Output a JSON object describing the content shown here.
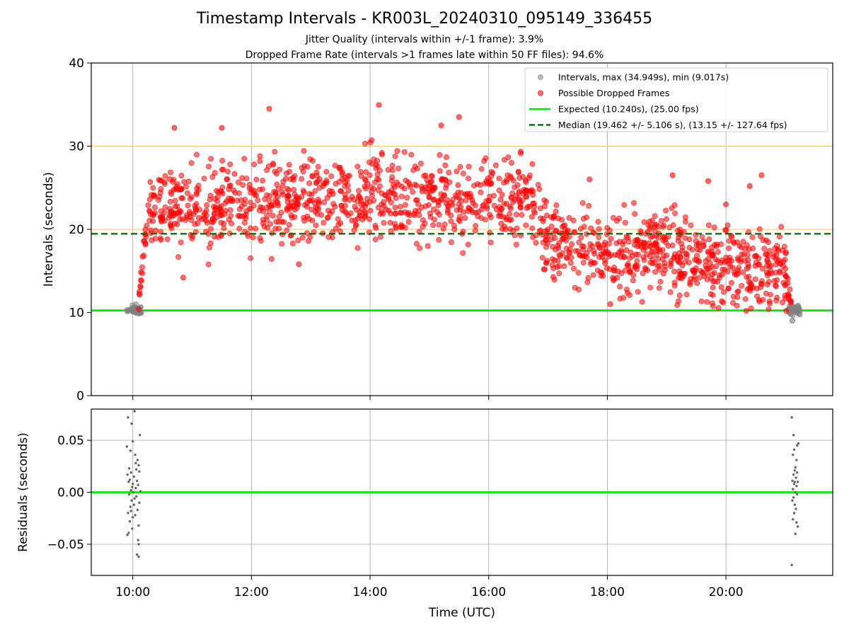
{
  "title": "Timestamp Intervals - KR003L_20240310_095149_336455",
  "subtitle_1": "Jitter Quality (intervals within +/-1 frame): 3.9%",
  "subtitle_2": "Dropped Frame Rate (intervals >1 frames late within 50 FF files): 94.6%",
  "colors": {
    "intervals": "#808080",
    "dropped": "#ff0000",
    "expected": "#00ee00",
    "median": "#007700",
    "limit": "#ffd060",
    "grid": "#b0b0b0"
  },
  "chart_data": [
    {
      "type": "scatter",
      "ylabel": "Intervals (seconds)",
      "ylim": [
        0,
        40
      ],
      "yticks": [
        0,
        10,
        20,
        30,
        40
      ],
      "xlim_hours": [
        9.3,
        21.8
      ],
      "xticks_hours": [
        10,
        12,
        14,
        16,
        18,
        20
      ],
      "grid": "vertical",
      "legend_position": "top-right",
      "legend": [
        "Intervals, max (34.949s), min (9.017s)",
        "Possible Dropped Frames",
        "Expected (10.240s), (25.00 fps)",
        "Median (19.462 +/- 5.106 s), (13.15 +/- 127.64 fps)"
      ],
      "expected_interval": 10.24,
      "median_interval": 19.462,
      "limit_lines": [
        20,
        30
      ],
      "interval_extremes": {
        "max": 34.949,
        "min": 9.017
      },
      "dropped_frame_trend": [
        {
          "x_hours": 10.1,
          "y": 10.8
        },
        {
          "x_hours": 10.2,
          "y": 19.0
        },
        {
          "x_hours": 10.35,
          "y": 22.5
        },
        {
          "x_hours": 12.0,
          "y": 23.0
        },
        {
          "x_hours": 14.0,
          "y": 24.0
        },
        {
          "x_hours": 16.0,
          "y": 23.5
        },
        {
          "x_hours": 16.7,
          "y": 24.0
        },
        {
          "x_hours": 17.0,
          "y": 18.5
        },
        {
          "x_hours": 18.0,
          "y": 17.0
        },
        {
          "x_hours": 19.0,
          "y": 17.5
        },
        {
          "x_hours": 20.0,
          "y": 16.0
        },
        {
          "x_hours": 21.0,
          "y": 14.5
        },
        {
          "x_hours": 21.1,
          "y": 10.6
        }
      ],
      "dropped_frame_spread": 3.3,
      "dropped_frame_outliers": [
        {
          "x_hours": 14.15,
          "y": 34.949
        },
        {
          "x_hours": 12.3,
          "y": 34.5
        },
        {
          "x_hours": 15.5,
          "y": 33.5
        },
        {
          "x_hours": 10.7,
          "y": 32.2
        },
        {
          "x_hours": 11.5,
          "y": 32.2
        },
        {
          "x_hours": 15.2,
          "y": 32.5
        },
        {
          "x_hours": 17.7,
          "y": 26.0
        },
        {
          "x_hours": 19.1,
          "y": 26.5
        },
        {
          "x_hours": 20.6,
          "y": 26.5
        },
        {
          "x_hours": 19.7,
          "y": 25.8
        },
        {
          "x_hours": 20.4,
          "y": 25.2
        },
        {
          "x_hours": 20.0,
          "y": 23.0
        },
        {
          "x_hours": 10.85,
          "y": 14.2
        },
        {
          "x_hours": 12.8,
          "y": 15.8
        },
        {
          "x_hours": 18.05,
          "y": 11.0
        },
        {
          "x_hours": 19.95,
          "y": 11.2
        }
      ],
      "normal_interval_clusters": [
        {
          "x_range_hours": [
            9.9,
            10.15
          ],
          "y_center": 10.3
        },
        {
          "x_range_hours": [
            21.05,
            21.25
          ],
          "y_center": 10.3
        }
      ]
    },
    {
      "type": "scatter",
      "xlabel": "Time (UTC)",
      "ylabel": "Residuals (seconds)",
      "ylim": [
        -0.08,
        0.08
      ],
      "yticks": [
        -0.05,
        0.0,
        0.05
      ],
      "ytick_labels": [
        "−0.05",
        "0.00",
        "0.05"
      ],
      "xtick_labels": [
        "10:00",
        "12:00",
        "14:00",
        "16:00",
        "18:00",
        "20:00"
      ],
      "grid": "both",
      "zero_line": 0.0,
      "residual_points": [
        {
          "x_hours": 9.92,
          "y": 0.072
        },
        {
          "x_hours": 10.03,
          "y": 0.078
        },
        {
          "x_hours": 9.98,
          "y": 0.066
        },
        {
          "x_hours": 10.12,
          "y": 0.055
        },
        {
          "x_hours": 10.0,
          "y": 0.049
        },
        {
          "x_hours": 9.9,
          "y": 0.044
        },
        {
          "x_hours": 9.96,
          "y": 0.04
        },
        {
          "x_hours": 10.04,
          "y": 0.036
        },
        {
          "x_hours": 10.08,
          "y": 0.031
        },
        {
          "x_hours": 10.1,
          "y": 0.026
        },
        {
          "x_hours": 9.94,
          "y": 0.023
        },
        {
          "x_hours": 9.97,
          "y": 0.019
        },
        {
          "x_hours": 10.06,
          "y": 0.022
        },
        {
          "x_hours": 10.11,
          "y": 0.02
        },
        {
          "x_hours": 9.91,
          "y": 0.017
        },
        {
          "x_hours": 10.02,
          "y": 0.015
        },
        {
          "x_hours": 9.95,
          "y": 0.012
        },
        {
          "x_hours": 10.07,
          "y": 0.011
        },
        {
          "x_hours": 9.93,
          "y": 0.01
        },
        {
          "x_hours": 10.0,
          "y": 0.008
        },
        {
          "x_hours": 10.09,
          "y": 0.007
        },
        {
          "x_hours": 9.99,
          "y": 0.005
        },
        {
          "x_hours": 10.05,
          "y": 0.004
        },
        {
          "x_hours": 9.97,
          "y": 0.002
        },
        {
          "x_hours": 10.13,
          "y": 0.001
        },
        {
          "x_hours": 10.01,
          "y": 0.0
        },
        {
          "x_hours": 9.94,
          "y": -0.002
        },
        {
          "x_hours": 10.06,
          "y": -0.004
        },
        {
          "x_hours": 10.03,
          "y": -0.006
        },
        {
          "x_hours": 9.98,
          "y": -0.008
        },
        {
          "x_hours": 10.11,
          "y": -0.01
        },
        {
          "x_hours": 10.02,
          "y": -0.012
        },
        {
          "x_hours": 9.96,
          "y": -0.014
        },
        {
          "x_hours": 10.08,
          "y": -0.017
        },
        {
          "x_hours": 9.92,
          "y": -0.02
        },
        {
          "x_hours": 10.04,
          "y": -0.022
        },
        {
          "x_hours": 10.0,
          "y": -0.024
        },
        {
          "x_hours": 9.95,
          "y": -0.028
        },
        {
          "x_hours": 10.1,
          "y": -0.032
        },
        {
          "x_hours": 9.99,
          "y": -0.035
        },
        {
          "x_hours": 9.91,
          "y": -0.041
        },
        {
          "x_hours": 9.93,
          "y": -0.039
        },
        {
          "x_hours": 10.09,
          "y": -0.046
        },
        {
          "x_hours": 10.1,
          "y": -0.05
        },
        {
          "x_hours": 10.07,
          "y": -0.06
        },
        {
          "x_hours": 10.1,
          "y": -0.062
        },
        {
          "x_hours": 9.97,
          "y": -0.018
        },
        {
          "x_hours": 10.05,
          "y": 0.028
        },
        {
          "x_hours": 21.11,
          "y": 0.072
        },
        {
          "x_hours": 21.14,
          "y": 0.055
        },
        {
          "x_hours": 21.22,
          "y": 0.047
        },
        {
          "x_hours": 21.2,
          "y": 0.045
        },
        {
          "x_hours": 21.15,
          "y": 0.041
        },
        {
          "x_hours": 21.13,
          "y": 0.036
        },
        {
          "x_hours": 21.19,
          "y": 0.031
        },
        {
          "x_hours": 21.17,
          "y": 0.024
        },
        {
          "x_hours": 21.16,
          "y": 0.021
        },
        {
          "x_hours": 21.14,
          "y": 0.017
        },
        {
          "x_hours": 21.18,
          "y": 0.014
        },
        {
          "x_hours": 21.12,
          "y": 0.011
        },
        {
          "x_hours": 21.21,
          "y": 0.01
        },
        {
          "x_hours": 21.15,
          "y": 0.008
        },
        {
          "x_hours": 21.19,
          "y": 0.006
        },
        {
          "x_hours": 21.13,
          "y": 0.003
        },
        {
          "x_hours": 21.17,
          "y": 0.0
        },
        {
          "x_hours": 21.2,
          "y": -0.002
        },
        {
          "x_hours": 21.14,
          "y": -0.005
        },
        {
          "x_hours": 21.12,
          "y": -0.008
        },
        {
          "x_hours": 21.16,
          "y": -0.012
        },
        {
          "x_hours": 21.18,
          "y": -0.016
        },
        {
          "x_hours": 21.15,
          "y": -0.02
        },
        {
          "x_hours": 21.13,
          "y": -0.026
        },
        {
          "x_hours": 21.19,
          "y": -0.029
        },
        {
          "x_hours": 21.21,
          "y": -0.033
        },
        {
          "x_hours": 21.17,
          "y": -0.04
        },
        {
          "x_hours": 21.11,
          "y": -0.07
        },
        {
          "x_hours": 21.16,
          "y": 0.01
        },
        {
          "x_hours": 21.2,
          "y": 0.019
        }
      ]
    }
  ]
}
